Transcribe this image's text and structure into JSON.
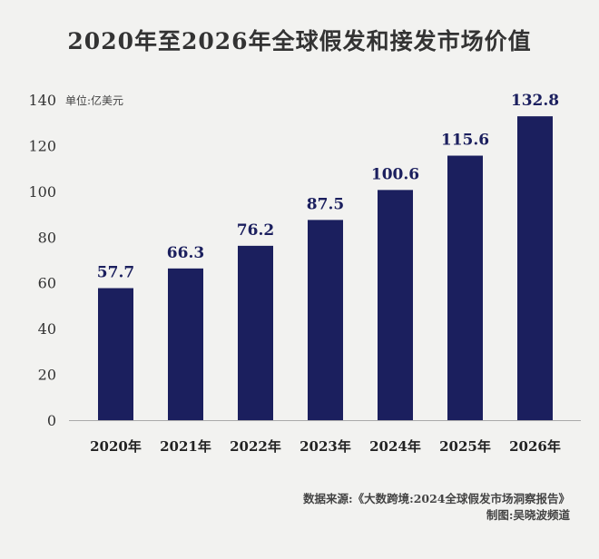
{
  "chart_data": {
    "type": "bar",
    "title": "2020年至2026年全球假发和接发市场价值",
    "unit_label": "单位:亿美元",
    "categories": [
      "2020年",
      "2021年",
      "2022年",
      "2023年",
      "2024年",
      "2025年",
      "2026年"
    ],
    "values": [
      57.7,
      66.3,
      76.2,
      87.5,
      100.6,
      115.6,
      132.8
    ],
    "value_labels": [
      "57.7",
      "66.3",
      "76.2",
      "87.5",
      "100.6",
      "115.6",
      "132.8"
    ],
    "ylim": [
      0,
      140
    ],
    "yticks": [
      "0",
      "20",
      "40",
      "60",
      "80",
      "100",
      "120",
      "140"
    ],
    "grid": false,
    "bar_color": "#1b1f5e"
  },
  "footer": {
    "source": "数据来源:《大数跨境:2024全球假发市场洞察报告》",
    "credit": "制图:吴晓波频道"
  }
}
